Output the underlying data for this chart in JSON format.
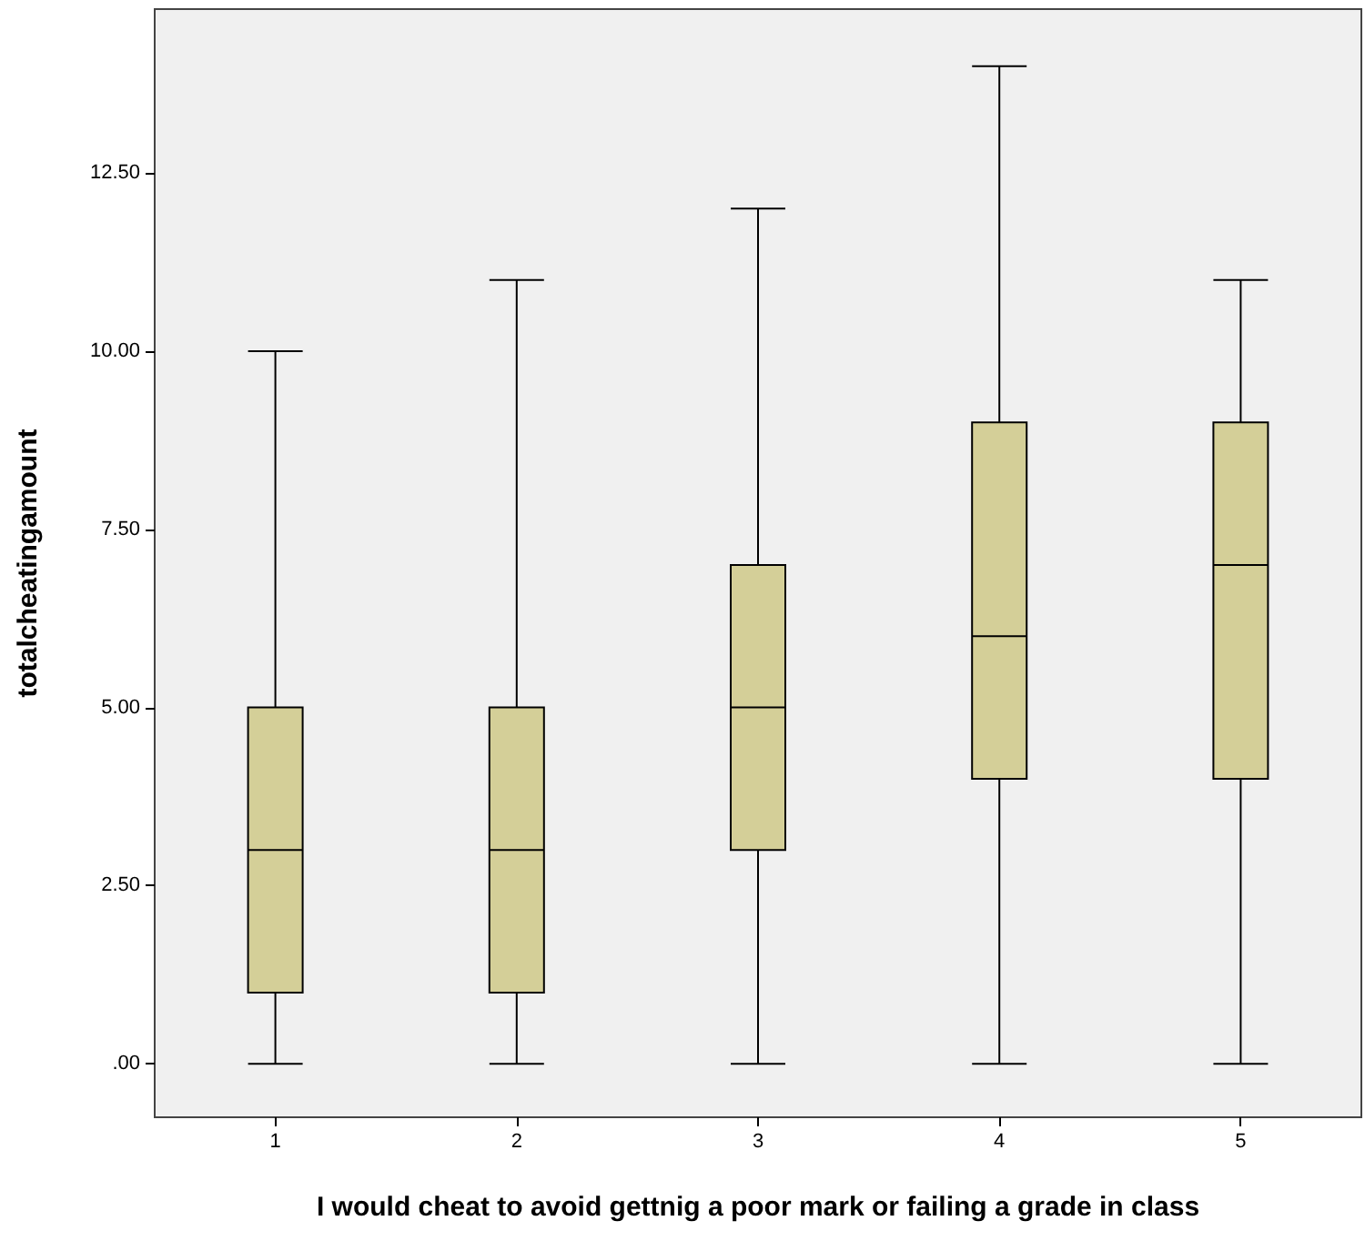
{
  "chart_data": {
    "type": "box",
    "xlabel": "I would cheat to avoid gettnig a poor mark or failing a grade in class",
    "ylabel": "totalcheatingamount",
    "categories": [
      "1",
      "2",
      "3",
      "4",
      "5"
    ],
    "boxes": [
      {
        "low": 0,
        "q1": 1,
        "median": 3,
        "q3": 5,
        "high": 10
      },
      {
        "low": 0,
        "q1": 1,
        "median": 3,
        "q3": 5,
        "high": 11
      },
      {
        "low": 0,
        "q1": 3,
        "median": 5,
        "q3": 7,
        "high": 12
      },
      {
        "low": 0,
        "q1": 4,
        "median": 6,
        "q3": 9,
        "high": 14
      },
      {
        "low": 0,
        "q1": 4,
        "median": 7,
        "q3": 9,
        "high": 11
      }
    ],
    "color": "#d4cf98",
    "ylim": [
      -0.75,
      14.8
    ],
    "yticks": [
      {
        "value": 0,
        "label": ".00"
      },
      {
        "value": 2.5,
        "label": "2.50"
      },
      {
        "value": 5,
        "label": "5.00"
      },
      {
        "value": 7.5,
        "label": "7.50"
      },
      {
        "value": 10,
        "label": "10.00"
      },
      {
        "value": 12.5,
        "label": "12.50"
      }
    ],
    "grid": false
  }
}
